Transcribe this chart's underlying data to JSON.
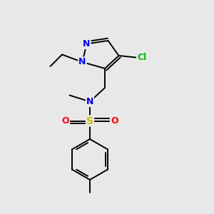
{
  "background_color": "#e8e8e8",
  "atom_colors": {
    "N": "#0000ee",
    "S": "#ccbb00",
    "O": "#ff0000",
    "Cl": "#00bb00",
    "C": "#000000"
  },
  "bond_color": "#000000",
  "bond_width": 1.4,
  "fig_size": [
    3.0,
    3.0
  ],
  "dpi": 100
}
